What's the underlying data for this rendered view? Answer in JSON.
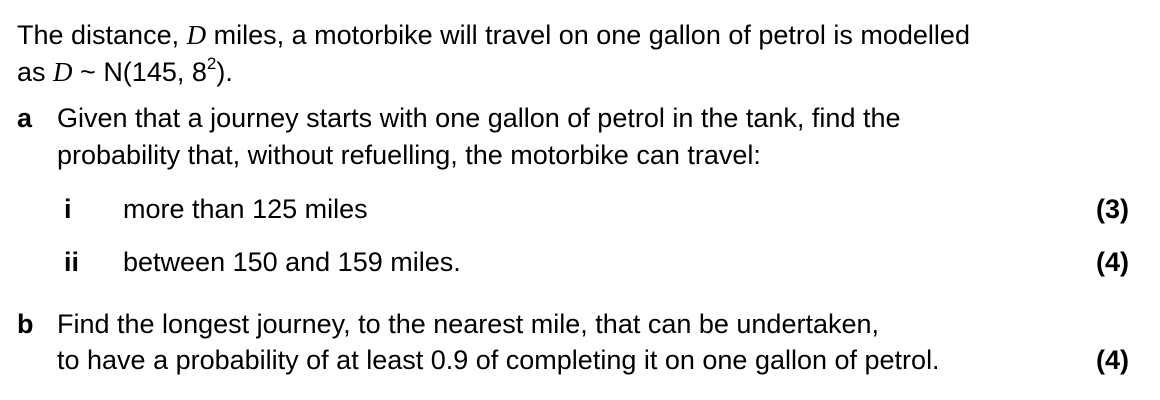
{
  "intro": {
    "line1_pre": "The distance, ",
    "var_D": "D",
    "line1_post": " miles, a motorbike will travel on one gallon of petrol is modelled",
    "line2_pre": "as ",
    "var_D2": "D",
    "tilde": " ~ ",
    "dist_pre": "N(145, 8",
    "dist_exp": "2",
    "dist_post": ")."
  },
  "part_a": {
    "label": "a",
    "line1": "Given that a journey starts with one gallon of petrol in the tank, find the",
    "line2": "probability that, without refuelling, the motorbike can travel:",
    "subparts": [
      {
        "label": "i",
        "text": "more than 125 miles",
        "marks": "(3)"
      },
      {
        "label": "ii",
        "text": "between 150 and 159 miles.",
        "marks": "(4)"
      }
    ]
  },
  "part_b": {
    "label": "b",
    "line1": "Find the longest journey, to the nearest mile, that can be undertaken,",
    "line2": "to have a probability of at least 0.9 of completing it on one gallon of petrol.",
    "marks": "(4)"
  }
}
